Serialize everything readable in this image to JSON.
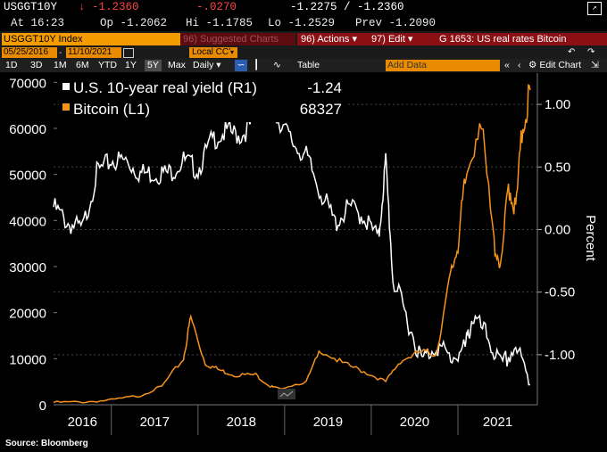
{
  "ticker": {
    "symbol": "USGGT10Y",
    "last": "↓ -1.2360",
    "change": "-.0270",
    "bid_ask": "-1.2275 / -1.2360",
    "at": "At 16:23",
    "open": "Op -1.2062",
    "high": "Hi -1.1785",
    "low": "Lo -1.2529",
    "prev": "Prev  -1.2090"
  },
  "command_bar": {
    "security": "USGGT10Y Index",
    "suggested": "96) Suggested Charts",
    "actions": "96) Actions ▾",
    "edit": "97) Edit ▾",
    "chart_name": "G 1653: US real rates Bitcoin"
  },
  "date_bar": {
    "start": "05/25/2016",
    "end": "11/10/2021",
    "currency": "Local CCY"
  },
  "toolbar": {
    "periods": [
      "1D",
      "3D",
      "1M",
      "6M",
      "YTD",
      "1Y",
      "5Y",
      "Max"
    ],
    "active_period": "5Y",
    "frequency": "Daily ▾",
    "table": "Table",
    "add_data": "Add Data",
    "edit_chart": "⚙ Edit Chart"
  },
  "colors": {
    "real_yield": "#ffffff",
    "bitcoin": "#f7931a",
    "security_field": "#f49b00",
    "red_bar": "#8c0f14",
    "orange_field": "#e98b00"
  },
  "chart_data": {
    "type": "line",
    "title": "",
    "left_axis": {
      "range": [
        0,
        72000
      ],
      "ticks": [
        0,
        10000,
        20000,
        30000,
        40000,
        50000,
        60000,
        70000
      ]
    },
    "right_axis": {
      "label": "Percent",
      "range": [
        -1.4,
        1.25
      ],
      "ticks": [
        "1.00",
        "0.50",
        "0.00",
        "-0.50",
        "-1.00"
      ],
      "tick_values": [
        1.0,
        0.5,
        0.0,
        -0.5,
        -1.0
      ]
    },
    "x_axis": {
      "labels": [
        "2016",
        "2017",
        "2018",
        "2019",
        "2020",
        "2021"
      ]
    },
    "legend": [
      {
        "name": "U.S. 10-year real yield (R1)",
        "value": "-1.24"
      },
      {
        "name": "Bitcoin (L1)",
        "value": "68327"
      }
    ],
    "series": [
      {
        "name": "U.S. 10-year real yield (R1)",
        "axis": "right",
        "x": [
          "2016-05",
          "2016-07",
          "2016-09",
          "2016-11",
          "2017-01",
          "2017-03",
          "2017-05",
          "2017-07",
          "2017-09",
          "2017-11",
          "2018-01",
          "2018-03",
          "2018-05",
          "2018-07",
          "2018-09",
          "2018-11",
          "2018-12",
          "2019-02",
          "2019-04",
          "2019-06",
          "2019-08",
          "2019-10",
          "2019-12",
          "2020-02",
          "2020-03",
          "2020-04",
          "2020-06",
          "2020-08",
          "2020-10",
          "2020-12",
          "2021-02",
          "2021-03",
          "2021-05",
          "2021-07",
          "2021-09",
          "2021-11"
        ],
        "values": [
          0.18,
          0.05,
          0.0,
          0.45,
          0.55,
          0.55,
          0.45,
          0.45,
          0.45,
          0.55,
          0.48,
          0.72,
          0.78,
          0.75,
          0.88,
          1.05,
          0.9,
          0.7,
          0.58,
          0.3,
          0.05,
          0.18,
          0.1,
          -0.08,
          0.55,
          -0.4,
          -0.72,
          -1.05,
          -0.92,
          -1.03,
          -0.95,
          -0.7,
          -0.85,
          -1.1,
          -0.93,
          -1.24
        ]
      },
      {
        "name": "Bitcoin (L1)",
        "axis": "left",
        "x": [
          "2016-05",
          "2016-09",
          "2017-01",
          "2017-05",
          "2017-08",
          "2017-11",
          "2017-12",
          "2018-02",
          "2018-04",
          "2018-06",
          "2018-09",
          "2018-11",
          "2018-12",
          "2019-04",
          "2019-06",
          "2019-09",
          "2019-12",
          "2020-03",
          "2020-05",
          "2020-08",
          "2020-10",
          "2020-12",
          "2021-01",
          "2021-02",
          "2021-04",
          "2021-06",
          "2021-07",
          "2021-08",
          "2021-09",
          "2021-10",
          "2021-11"
        ],
        "values": [
          500,
          600,
          1000,
          2000,
          4000,
          10000,
          19000,
          9000,
          7500,
          6500,
          6500,
          4000,
          3500,
          5000,
          12000,
          9000,
          7200,
          5000,
          9500,
          11500,
          11000,
          28000,
          35000,
          48000,
          63000,
          35000,
          30000,
          48000,
          42000,
          61000,
          68327
        ]
      }
    ]
  },
  "source": "Source: Bloomberg"
}
